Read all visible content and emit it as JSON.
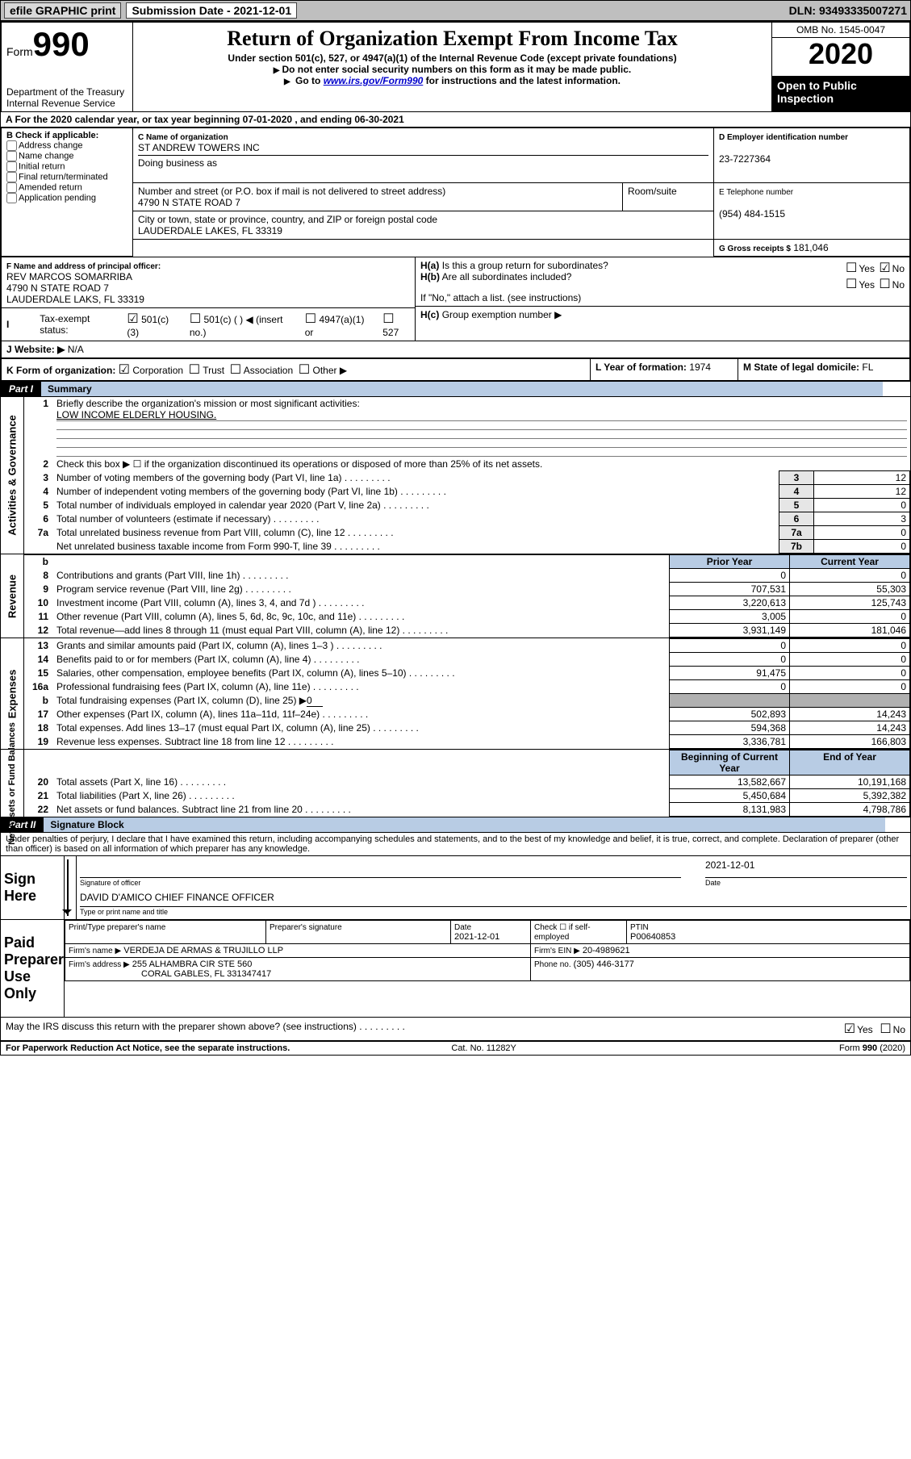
{
  "topbar": {
    "efile": "efile GRAPHIC print",
    "sub_label": "Submission Date - 2021-12-01",
    "dln": "DLN: 93493335007271"
  },
  "header": {
    "form_label": "Form",
    "form_number": "990",
    "dept": "Department of the Treasury\nInternal Revenue Service",
    "title": "Return of Organization Exempt From Income Tax",
    "sub1": "Under section 501(c), 527, or 4947(a)(1) of the Internal Revenue Code (except private foundations)",
    "sub2": "Do not enter social security numbers on this form as it may be made public.",
    "sub3_pre": "Go to ",
    "sub3_link": "www.irs.gov/Form990",
    "sub3_post": " for instructions and the latest information.",
    "omb": "OMB No. 1545-0047",
    "year": "2020",
    "open": "Open to Public Inspection"
  },
  "lineA": "A For the 2020 calendar year, or tax year beginning 07-01-2020     , and ending 06-30-2021",
  "sectionB": {
    "label": "B Check if applicable:",
    "opts": [
      "Address change",
      "Name change",
      "Initial return",
      "Final return/terminated",
      "Amended return",
      "Application pending"
    ]
  },
  "sectionC": {
    "name_label": "C Name of organization",
    "name": "ST ANDREW TOWERS INC",
    "dba_label": "Doing business as",
    "dba": "",
    "street_label": "Number and street (or P.O. box if mail is not delivered to street address)",
    "room_label": "Room/suite",
    "street": "4790 N STATE ROAD 7",
    "city_label": "City or town, state or province, country, and ZIP or foreign postal code",
    "city": "LAUDERDALE LAKES, FL  33319"
  },
  "sectionD": {
    "label": "D Employer identification number",
    "value": "23-7227364"
  },
  "sectionE": {
    "label": "E Telephone number",
    "value": "(954) 484-1515"
  },
  "sectionG": {
    "label": "G Gross receipts $",
    "value": "181,046"
  },
  "sectionF": {
    "label": "F Name and address of principal officer:",
    "name": "REV MARCOS SOMARRIBA",
    "addr1": "4790 N STATE ROAD 7",
    "addr2": "LAUDERDALE LAKS, FL  33319"
  },
  "sectionH": {
    "a": "Is this a group return for subordinates?",
    "b": "Are all subordinates included?",
    "note": "If \"No,\" attach a list. (see instructions)",
    "c": "Group exemption number ▶",
    "ha_prefix": "H(a)",
    "hb_prefix": "H(b)",
    "hc_prefix": "H(c)",
    "yes": "Yes",
    "no": "No"
  },
  "sectionI": {
    "label": "Tax-exempt status:",
    "o1": "501(c)(3)",
    "o2": "501(c) (  ) ◀ (insert no.)",
    "o3": "4947(a)(1) or",
    "o4": "527"
  },
  "sectionJ": {
    "label": "J   Website: ▶",
    "value": "N/A"
  },
  "sectionK": {
    "label": "K Form of organization:",
    "o1": "Corporation",
    "o2": "Trust",
    "o3": "Association",
    "o4": "Other ▶"
  },
  "sectionL": {
    "label": "L Year of formation:",
    "value": "1974"
  },
  "sectionM": {
    "label": "M State of legal domicile:",
    "value": "FL"
  },
  "part1": {
    "hdr": "Part I",
    "sub": "Summary",
    "side_ag": "Activities & Governance",
    "side_rev": "Revenue",
    "side_exp": "Expenses",
    "side_net": "Net Assets or Fund Balances",
    "q1": "Briefly describe the organization's mission or most significant activities:",
    "q1v": "LOW INCOME ELDERLY HOUSING.",
    "q2": "Check this box ▶ ☐  if the organization discontinued its operations or disposed of more than 25% of its net assets.",
    "rows_ag": [
      {
        "n": "3",
        "t": "Number of voting members of the governing body (Part VI, line 1a)",
        "b": "3",
        "v": "12"
      },
      {
        "n": "4",
        "t": "Number of independent voting members of the governing body (Part VI, line 1b)",
        "b": "4",
        "v": "12"
      },
      {
        "n": "5",
        "t": "Total number of individuals employed in calendar year 2020 (Part V, line 2a)",
        "b": "5",
        "v": "0"
      },
      {
        "n": "6",
        "t": "Total number of volunteers (estimate if necessary)",
        "b": "6",
        "v": "3"
      },
      {
        "n": "7a",
        "t": "Total unrelated business revenue from Part VIII, column (C), line 12",
        "b": "7a",
        "v": "0"
      },
      {
        "n": "",
        "t": "Net unrelated business taxable income from Form 990-T, line 39",
        "b": "7b",
        "v": "0"
      }
    ],
    "hdr_prior": "Prior Year",
    "hdr_curr": "Current Year",
    "rows_rev": [
      {
        "n": "8",
        "t": "Contributions and grants (Part VIII, line 1h)",
        "p": "0",
        "c": "0"
      },
      {
        "n": "9",
        "t": "Program service revenue (Part VIII, line 2g)",
        "p": "707,531",
        "c": "55,303"
      },
      {
        "n": "10",
        "t": "Investment income (Part VIII, column (A), lines 3, 4, and 7d )",
        "p": "3,220,613",
        "c": "125,743"
      },
      {
        "n": "11",
        "t": "Other revenue (Part VIII, column (A), lines 5, 6d, 8c, 9c, 10c, and 11e)",
        "p": "3,005",
        "c": "0"
      },
      {
        "n": "12",
        "t": "Total revenue—add lines 8 through 11 (must equal Part VIII, column (A), line 12)",
        "p": "3,931,149",
        "c": "181,046"
      }
    ],
    "rows_exp": [
      {
        "n": "13",
        "t": "Grants and similar amounts paid (Part IX, column (A), lines 1–3 )",
        "p": "0",
        "c": "0"
      },
      {
        "n": "14",
        "t": "Benefits paid to or for members (Part IX, column (A), line 4)",
        "p": "0",
        "c": "0"
      },
      {
        "n": "15",
        "t": "Salaries, other compensation, employee benefits (Part IX, column (A), lines 5–10)",
        "p": "91,475",
        "c": "0"
      },
      {
        "n": "16a",
        "t": "Professional fundraising fees (Part IX, column (A), line 11e)",
        "p": "0",
        "c": "0"
      }
    ],
    "row16b": {
      "n": "b",
      "t": "Total fundraising expenses (Part IX, column (D), line 25) ▶",
      "v": "0"
    },
    "rows_exp2": [
      {
        "n": "17",
        "t": "Other expenses (Part IX, column (A), lines 11a–11d, 11f–24e)",
        "p": "502,893",
        "c": "14,243"
      },
      {
        "n": "18",
        "t": "Total expenses. Add lines 13–17 (must equal Part IX, column (A), line 25)",
        "p": "594,368",
        "c": "14,243"
      },
      {
        "n": "19",
        "t": "Revenue less expenses. Subtract line 18 from line 12",
        "p": "3,336,781",
        "c": "166,803"
      }
    ],
    "hdr_beg": "Beginning of Current Year",
    "hdr_end": "End of Year",
    "rows_net": [
      {
        "n": "20",
        "t": "Total assets (Part X, line 16)",
        "p": "13,582,667",
        "c": "10,191,168"
      },
      {
        "n": "21",
        "t": "Total liabilities (Part X, line 26)",
        "p": "5,450,684",
        "c": "5,392,382"
      },
      {
        "n": "22",
        "t": "Net assets or fund balances. Subtract line 21 from line 20",
        "p": "8,131,983",
        "c": "4,798,786"
      }
    ]
  },
  "part2": {
    "hdr": "Part II",
    "sub": "Signature Block",
    "pen": "Under penalties of perjury, I declare that I have examined this return, including accompanying schedules and statements, and to the best of my knowledge and belief, it is true, correct, and complete. Declaration of preparer (other than officer) is based on all information of which preparer has any knowledge.",
    "sign_here": "Sign Here",
    "sig_officer": "Signature of officer",
    "date": "Date",
    "date_v": "2021-12-01",
    "name_title": "DAVID D'AMICO  CHIEF FINANCE OFFICER",
    "type_name": "Type or print name and title",
    "paid": "Paid Preparer Use Only",
    "prep_name_l": "Print/Type preparer's name",
    "prep_sig_l": "Preparer's signature",
    "prep_date_l": "Date",
    "prep_date_v": "2021-12-01",
    "check_se": "Check ☐ if self-employed",
    "ptin_l": "PTIN",
    "ptin_v": "P00640853",
    "firm_name_l": "Firm's name    ▶",
    "firm_name_v": "VERDEJA DE ARMAS & TRUJILLO LLP",
    "firm_ein_l": "Firm's EIN ▶",
    "firm_ein_v": "20-4989621",
    "firm_addr_l": "Firm's address ▶",
    "firm_addr_v1": "255 ALHAMBRA CIR STE 560",
    "firm_addr_v2": "CORAL GABLES, FL  331347417",
    "phone_l": "Phone no.",
    "phone_v": "(305) 446-3177",
    "discuss": "May the IRS discuss this return with the preparer shown above? (see instructions)",
    "yes": "Yes",
    "no": "No"
  },
  "footer": {
    "l": "For Paperwork Reduction Act Notice, see the separate instructions.",
    "c": "Cat. No. 11282Y",
    "r_pre": "Form ",
    "r_b": "990",
    "r_post": " (2020)"
  },
  "colors": {
    "blue_bg": "#b8cce4",
    "gray_bg": "#bfbfbf",
    "link": "#0000cc"
  }
}
